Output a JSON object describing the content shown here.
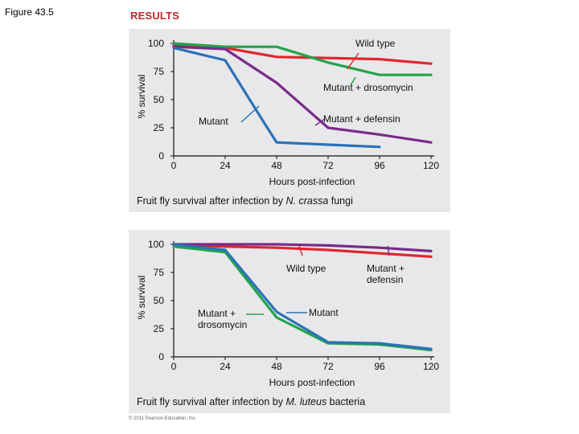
{
  "figure_label": "Figure 43.5",
  "section_title": "RESULTS",
  "copyright": "© 2011 Pearson Education, Inc.",
  "chart_data": [
    {
      "type": "line",
      "title": "Fruit fly survival after infection by N. crassa fungi",
      "caption": {
        "prefix": "Fruit fly survival after infection by ",
        "italic": "N. crassa",
        "suffix": " fungi"
      },
      "xlabel": "Hours post-infection",
      "ylabel": "% survival",
      "xlim": [
        0,
        120
      ],
      "ylim": [
        0,
        100
      ],
      "x_ticks": [
        0,
        24,
        48,
        72,
        96,
        120
      ],
      "y_ticks": [
        0,
        25,
        50,
        75,
        100
      ],
      "grid": false,
      "series": [
        {
          "name": "Wild type",
          "color": "#e0262b",
          "x": [
            0,
            24,
            48,
            72,
            96,
            120
          ],
          "y": [
            98,
            96,
            88,
            87,
            86,
            82
          ]
        },
        {
          "name": "Mutant + drosomycin",
          "color": "#25a34a",
          "x": [
            0,
            24,
            48,
            72,
            96,
            120
          ],
          "y": [
            100,
            97,
            97,
            83,
            72,
            72
          ]
        },
        {
          "name": "Mutant + defensin",
          "color": "#7a2a8a",
          "x": [
            0,
            24,
            48,
            72,
            96,
            120
          ],
          "y": [
            97,
            95,
            65,
            25,
            19,
            12
          ]
        },
        {
          "name": "Mutant",
          "color": "#2a72b8",
          "x": [
            0,
            24,
            42,
            48,
            72,
            96
          ],
          "y": [
            96,
            85,
            30,
            12,
            10,
            8
          ]
        }
      ],
      "annotations": [
        {
          "text": "Wild type",
          "series": "Wild type"
        },
        {
          "text": "Mutant + drosomycin",
          "series": "Mutant + drosomycin"
        },
        {
          "text": "Mutant + defensin",
          "series": "Mutant + defensin"
        },
        {
          "text": "Mutant",
          "series": "Mutant"
        }
      ]
    },
    {
      "type": "line",
      "title": "Fruit fly survival after infection by M. luteus bacteria",
      "caption": {
        "prefix": "Fruit fly survival after infection by ",
        "italic": "M. luteus",
        "suffix": " bacteria"
      },
      "xlabel": "Hours post-infection",
      "ylabel": "% survival",
      "xlim": [
        0,
        120
      ],
      "ylim": [
        0,
        100
      ],
      "x_ticks": [
        0,
        24,
        48,
        72,
        96,
        120
      ],
      "y_ticks": [
        0,
        25,
        50,
        75,
        100
      ],
      "grid": false,
      "series": [
        {
          "name": "Wild type",
          "color": "#e0262b",
          "x": [
            0,
            24,
            48,
            72,
            96,
            120
          ],
          "y": [
            100,
            98,
            97,
            95,
            92,
            89
          ]
        },
        {
          "name": "Mutant + defensin",
          "color": "#7a2a8a",
          "x": [
            0,
            24,
            48,
            72,
            96,
            120
          ],
          "y": [
            100,
            100,
            100,
            99,
            97,
            94
          ]
        },
        {
          "name": "Mutant + drosomycin",
          "color": "#25a34a",
          "x": [
            0,
            24,
            48,
            72,
            96,
            120
          ],
          "y": [
            98,
            93,
            35,
            12,
            11,
            6
          ]
        },
        {
          "name": "Mutant",
          "color": "#2a72b8",
          "x": [
            0,
            24,
            48,
            72,
            96,
            120
          ],
          "y": [
            100,
            95,
            40,
            13,
            12,
            7
          ]
        }
      ],
      "annotations": [
        {
          "text": "Wild type",
          "series": "Wild type"
        },
        {
          "text": "Mutant + defensin",
          "series": "Mutant + defensin"
        },
        {
          "text": "Mutant + drosomycin",
          "series": "Mutant + drosomycin"
        },
        {
          "text": "Mutant",
          "series": "Mutant"
        }
      ]
    }
  ]
}
